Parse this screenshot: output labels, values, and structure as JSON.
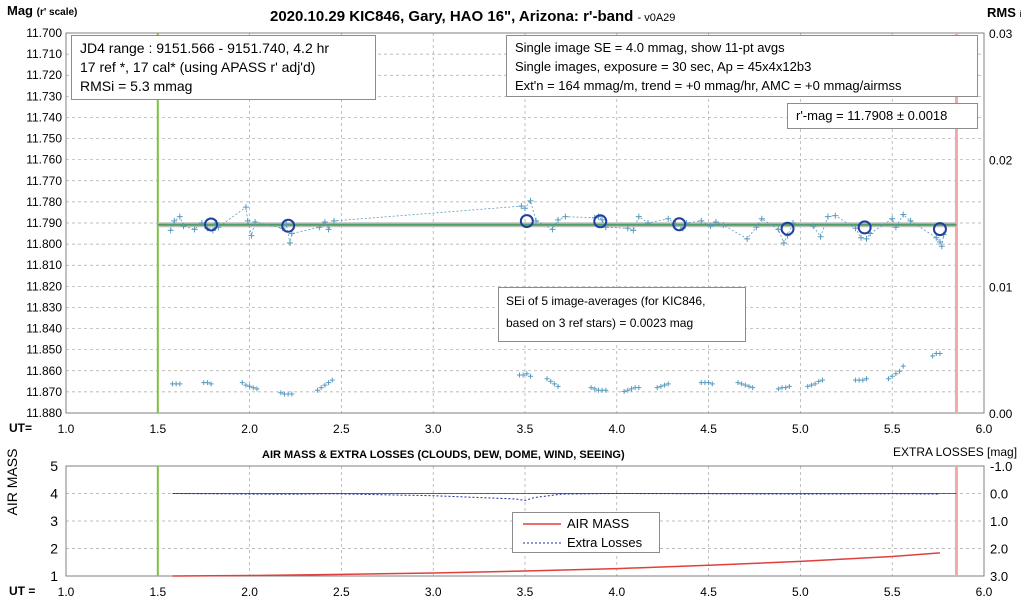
{
  "colors": {
    "axis": "#808080",
    "grid": "#a6a6a6",
    "data_points": "#5b9bbd",
    "averages": "#1f3f9f",
    "mean_line": "#4d9f63",
    "mean_band": "#bfbfbf",
    "start_marker": "#7fc242",
    "end_marker": "#f4a8a8",
    "air_mass_line": "#e0403c",
    "extra_losses_line": "#1f2f9f"
  },
  "chart_data": [
    {
      "type": "scatter",
      "title": "2020.10.29 KIC846, Gary, HAO 16\", Arizona: r'-band",
      "title_suffix": "- v0A29",
      "ylabel": "Mag",
      "ylabel_note": "(r' scale)",
      "y2label": "RMS",
      "y2label_suffix": "i",
      "xlabel_prefix": "UT=",
      "xlim": [
        1.0,
        6.0
      ],
      "ylim": [
        11.88,
        11.7
      ],
      "y2lim": [
        0.0,
        0.03
      ],
      "x_ticks": [
        "1.0",
        "1.5",
        "2.0",
        "2.5",
        "3.0",
        "3.5",
        "4.0",
        "4.5",
        "5.0",
        "5.5",
        "6.0"
      ],
      "y_ticks": [
        "11.700",
        "11.710",
        "11.720",
        "11.730",
        "11.740",
        "11.750",
        "11.760",
        "11.770",
        "11.780",
        "11.790",
        "11.800",
        "11.810",
        "11.820",
        "11.830",
        "11.840",
        "11.850",
        "11.860",
        "11.870",
        "11.880"
      ],
      "y2_ticks": [
        "0.03",
        "0.02",
        "0.01",
        "0.00"
      ],
      "grid": true,
      "mean_mag": 11.7908,
      "start_marker_x": 1.5,
      "end_marker_x": 5.85,
      "annotations": {
        "jd_box": [
          "JD4 range : 9151.566 - 9151.740,  4.2  hr",
          "17 ref *, 17 cal* (using APASS r' adj'd)",
          "RMSi = 5.3 mmag"
        ],
        "info_box": [
          "Single image SE = 4.0 mmag, show  11-pt avgs",
          "Single images, exposure = 30 sec, Ap = 45x4x12b3",
          "Ext'n = 164 mmag/m, trend = +0 mmag/hr, AMC = +0 mmag/airmss"
        ],
        "rmag_box": "r'-mag = 11.7908 ± 0.0018",
        "sei_box": [
          "SEi of 5 image-averages (for KIC846,",
          "based on 3 ref stars) = 0.0023 mag"
        ]
      },
      "series": [
        {
          "name": "single images",
          "x": [
            1.57,
            1.59,
            1.62,
            1.64,
            1.7,
            1.74,
            1.77,
            1.8,
            1.82,
            1.83,
            1.98,
            1.99,
            2.01,
            2.03,
            2.18,
            2.2,
            2.22,
            2.23,
            2.38,
            2.41,
            2.43,
            2.46,
            3.48,
            3.5,
            3.53,
            3.56,
            3.65,
            3.68,
            3.72,
            3.88,
            3.9,
            3.92,
            3.94,
            4.06,
            4.09,
            4.12,
            4.17,
            4.28,
            4.32,
            4.36,
            4.38,
            4.46,
            4.51,
            4.54,
            4.58,
            4.71,
            4.76,
            4.79,
            4.88,
            4.91,
            4.93,
            4.96,
            5.07,
            5.11,
            5.15,
            5.19,
            5.3,
            5.33,
            5.36,
            5.38,
            5.5,
            5.52,
            5.56,
            5.6,
            5.74,
            5.76,
            5.77,
            5.78
          ],
          "y": [
            11.7935,
            11.789,
            11.787,
            11.7915,
            11.793,
            11.79,
            11.7925,
            11.7935,
            11.79,
            11.792,
            11.7825,
            11.789,
            11.796,
            11.7895,
            11.7925,
            11.7905,
            11.7995,
            11.795,
            11.792,
            11.7895,
            11.793,
            11.789,
            11.782,
            11.783,
            11.7795,
            11.789,
            11.793,
            11.7885,
            11.787,
            11.7875,
            11.787,
            11.7885,
            11.792,
            11.7925,
            11.7935,
            11.787,
            11.79,
            11.788,
            11.7905,
            11.7925,
            11.79,
            11.789,
            11.7915,
            11.7895,
            11.791,
            11.7975,
            11.792,
            11.788,
            11.793,
            11.7995,
            11.796,
            11.79,
            11.7915,
            11.7965,
            11.787,
            11.7865,
            11.7925,
            11.797,
            11.7975,
            11.795,
            11.788,
            11.792,
            11.786,
            11.789,
            11.797,
            11.799,
            11.801,
            11.7955
          ]
        },
        {
          "name": "11-pt avgs",
          "x": [
            1.79,
            2.21,
            3.51,
            3.91,
            4.34,
            4.93,
            5.35,
            5.76
          ],
          "y": [
            11.7907,
            11.7913,
            11.7891,
            11.7892,
            11.7906,
            11.7927,
            11.7921,
            11.7929
          ]
        },
        {
          "name": "RMSi",
          "x": [
            1.58,
            1.6,
            1.62,
            1.75,
            1.77,
            1.79,
            1.96,
            1.98,
            2.0,
            2.02,
            2.04,
            2.17,
            2.19,
            2.21,
            2.23,
            2.37,
            2.39,
            2.41,
            2.43,
            2.45,
            3.47,
            3.49,
            3.51,
            3.53,
            3.62,
            3.64,
            3.66,
            3.68,
            3.86,
            3.88,
            3.9,
            3.92,
            3.94,
            4.04,
            4.06,
            4.08,
            4.1,
            4.12,
            4.22,
            4.24,
            4.26,
            4.28,
            4.46,
            4.48,
            4.5,
            4.52,
            4.66,
            4.68,
            4.7,
            4.72,
            4.74,
            4.88,
            4.9,
            4.92,
            4.94,
            5.04,
            5.06,
            5.08,
            5.1,
            5.12,
            5.3,
            5.32,
            5.34,
            5.36,
            5.48,
            5.5,
            5.52,
            5.54,
            5.56,
            5.72,
            5.74,
            5.76
          ],
          "y": [
            0.0023,
            0.0023,
            0.0023,
            0.0024,
            0.0024,
            0.0023,
            0.0024,
            0.0022,
            0.0021,
            0.002,
            0.0019,
            0.0016,
            0.0015,
            0.0015,
            0.0015,
            0.0018,
            0.002,
            0.0022,
            0.0024,
            0.0026,
            0.003,
            0.003,
            0.0031,
            0.0029,
            0.0027,
            0.0025,
            0.0023,
            0.0021,
            0.002,
            0.0019,
            0.0018,
            0.0018,
            0.0018,
            0.0017,
            0.0018,
            0.0019,
            0.002,
            0.002,
            0.002,
            0.0021,
            0.0022,
            0.0023,
            0.0024,
            0.0024,
            0.0024,
            0.0023,
            0.0024,
            0.0023,
            0.0022,
            0.0021,
            0.002,
            0.0019,
            0.002,
            0.002,
            0.0021,
            0.0021,
            0.0022,
            0.0023,
            0.0025,
            0.0026,
            0.0026,
            0.0026,
            0.0026,
            0.0027,
            0.0027,
            0.0029,
            0.0031,
            0.0033,
            0.0037,
            0.0045,
            0.0047,
            0.0047
          ]
        }
      ]
    },
    {
      "type": "line",
      "title": "AIR MASS & EXTRA LOSSES (CLOUDS, DEW, DOME, WIND, SEEING)",
      "ylabel": "AIR MASS",
      "y2label": "EXTRA LOSSES [mag]",
      "xlabel_prefix": "UT =",
      "xlim": [
        1.0,
        6.0
      ],
      "ylim": [
        1,
        5
      ],
      "y2lim": [
        3.0,
        -1.0
      ],
      "x_ticks": [
        "1.0",
        "1.5",
        "2.0",
        "2.5",
        "3.0",
        "3.5",
        "4.0",
        "4.5",
        "5.0",
        "5.5",
        "6.0"
      ],
      "y_ticks": [
        "5",
        "4",
        "3",
        "2",
        "1"
      ],
      "y2_ticks": [
        "-1.0",
        "0.0",
        "1.0",
        "2.0",
        "3.0"
      ],
      "grid": true,
      "legend_placement": "center",
      "series": [
        {
          "name": "AIR MASS",
          "x": [
            1.58,
            2.0,
            2.5,
            3.0,
            3.5,
            4.0,
            4.5,
            5.0,
            5.5,
            5.76
          ],
          "y": [
            1.0,
            1.02,
            1.06,
            1.11,
            1.18,
            1.27,
            1.39,
            1.53,
            1.71,
            1.84
          ]
        },
        {
          "name": "Extra Losses",
          "x": [
            1.58,
            1.8,
            2.0,
            2.2,
            2.45,
            3.0,
            3.45,
            3.5,
            3.55,
            3.7,
            4.0,
            4.5,
            5.0,
            5.5,
            5.76
          ],
          "y": [
            0.0,
            0.01,
            0.02,
            0.03,
            0.01,
            0.08,
            0.2,
            0.25,
            0.15,
            0.02,
            0.0,
            0.01,
            0.02,
            0.01,
            0.02
          ]
        }
      ]
    }
  ]
}
